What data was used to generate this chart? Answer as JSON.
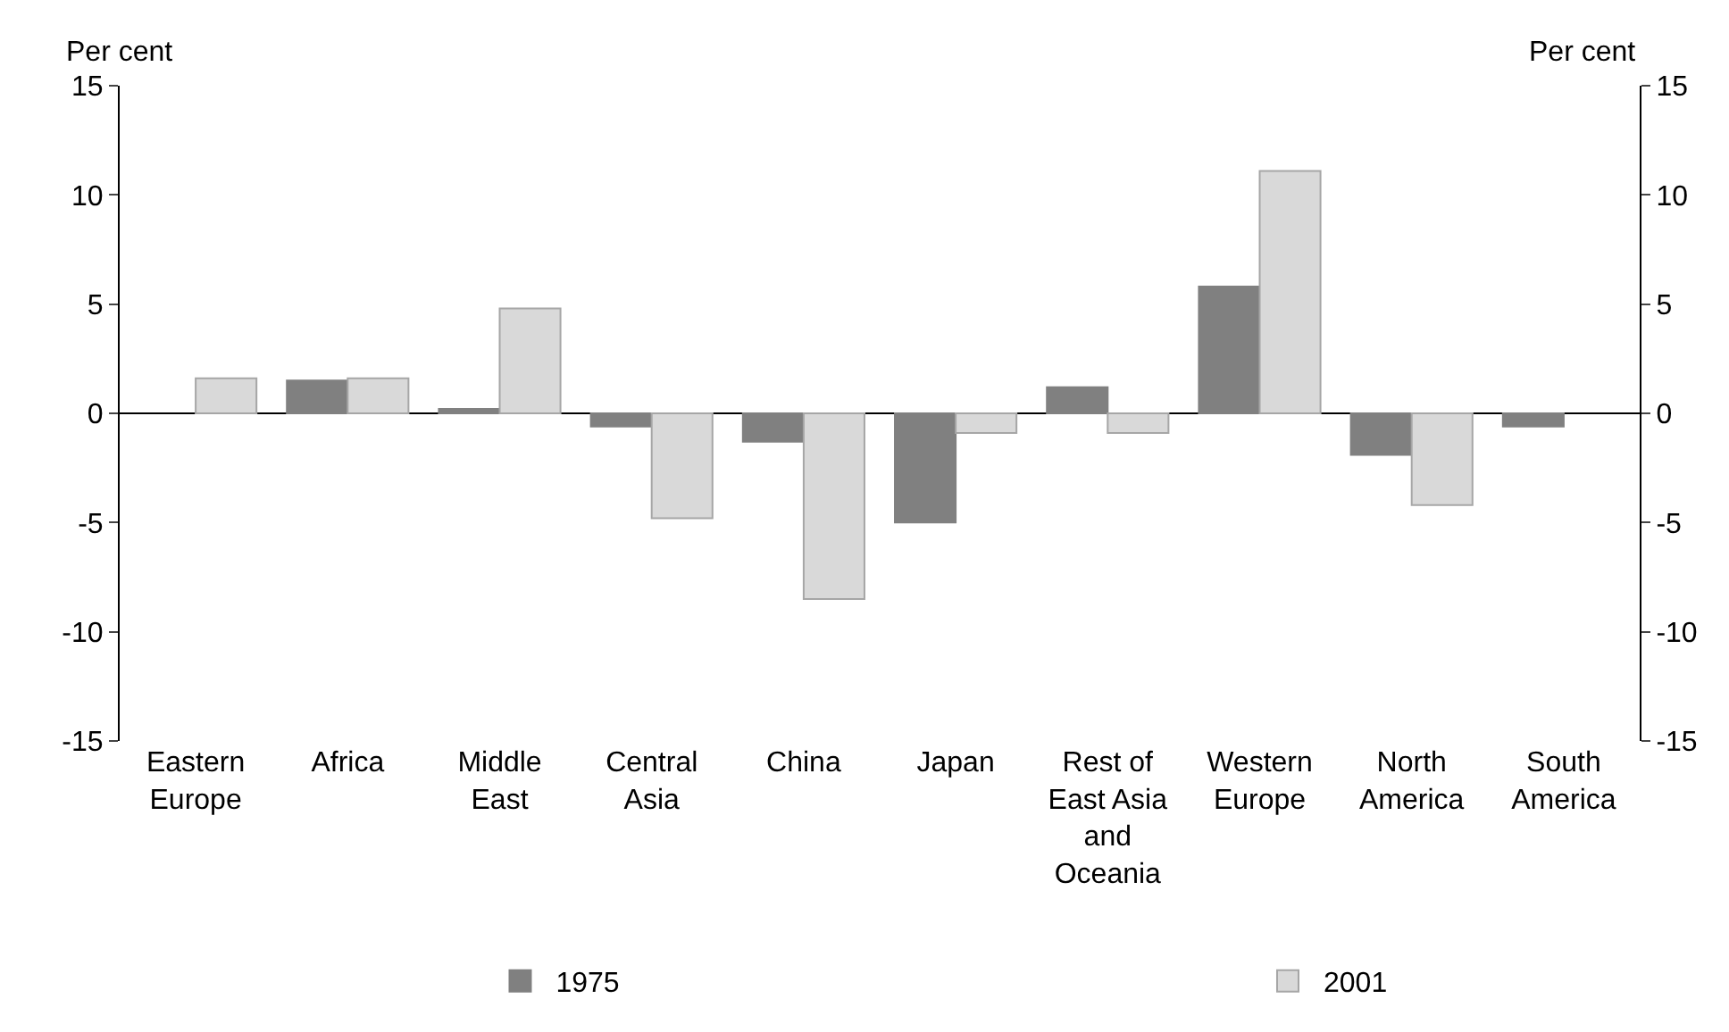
{
  "chart_data": {
    "type": "bar",
    "ylabel": "Per cent",
    "y2label": "Per cent",
    "categories": [
      "Eastern Europe",
      "Africa",
      "Middle East",
      "Central Asia",
      "China",
      "Japan",
      "Rest of East Asia and Oceania",
      "Western Europe",
      "North America",
      "South America"
    ],
    "series": [
      {
        "name": "1975",
        "color": "#808080",
        "values": [
          null,
          1.5,
          0.2,
          -0.6,
          -1.3,
          -5.0,
          1.2,
          5.8,
          -1.9,
          -0.6
        ]
      },
      {
        "name": "2001",
        "color": "#d9d9d9",
        "values": [
          1.6,
          1.6,
          4.8,
          -4.8,
          -8.5,
          -0.9,
          -0.9,
          11.1,
          -4.2,
          null
        ]
      }
    ],
    "ylim": [
      -15,
      15
    ],
    "yticks": [
      -15,
      -10,
      -5,
      0,
      5,
      10,
      15
    ],
    "y2lim": [
      -15,
      15
    ],
    "y2ticks": [
      -15,
      -10,
      -5,
      0,
      5,
      10,
      15
    ],
    "ref_lines": [
      {
        "axis": "y",
        "value": 0,
        "color": "#000000"
      }
    ],
    "grid": false,
    "legend": "bottom"
  }
}
